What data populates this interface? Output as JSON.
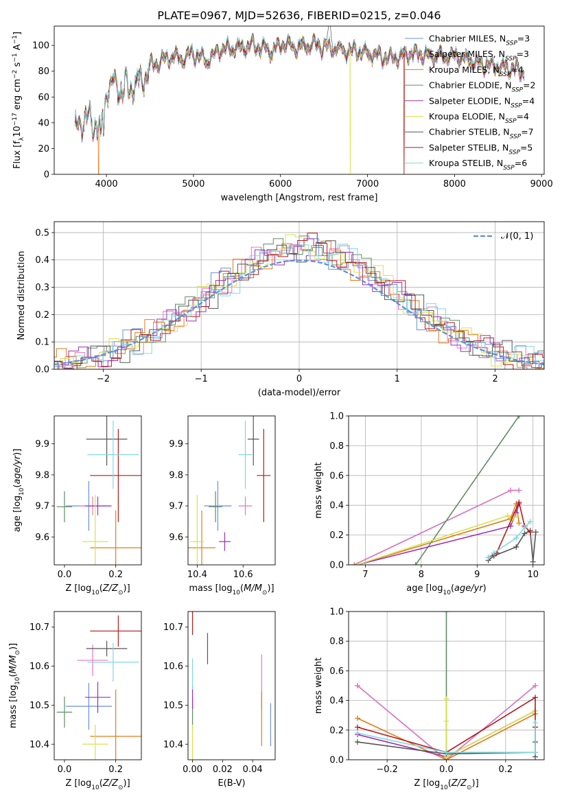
{
  "title": "PLATE=0967, MJD=52636, FIBERID=0215, z=0.046",
  "colors": {
    "Chabrier MILES": "#6a8fdc",
    "Salpeter MILES": "#e377c2",
    "Kroupa MILES": "#e07b18",
    "Chabrier ELODIE": "#5e8c64",
    "Salpeter ELODIE": "#9b2fb5",
    "Kroupa ELODIE": "#d6e34a",
    "Chabrier STELIB": "#555555",
    "Salpeter STELIB": "#b01a1a",
    "Kroupa STELIB": "#7fd7e0",
    "gaussian": "#5b8ee0"
  },
  "legend_main": [
    {
      "base": "Chabrier MILES, N",
      "n": "3"
    },
    {
      "base": "Salpeter MILES, N",
      "n": "3"
    },
    {
      "base": "Kroupa MILES, N",
      "n": "4"
    },
    {
      "base": "Chabrier ELODIE, N",
      "n": "2"
    },
    {
      "base": "Salpeter ELODIE, N",
      "n": "4"
    },
    {
      "base": "Kroupa ELODIE, N",
      "n": "4"
    },
    {
      "base": "Chabrier STELIB, N",
      "n": "7"
    },
    {
      "base": "Salpeter STELIB, N",
      "n": "5"
    },
    {
      "base": "Kroupa STELIB, N",
      "n": "6"
    }
  ],
  "legend_sub": "SSP",
  "legend_gauss": "𝒩(0, 1)",
  "chart_data": [
    {
      "id": "spectrum",
      "type": "line",
      "xlabel": "wavelength [Angstrom, rest frame]",
      "ylabel": "Flux [f",
      "xlim": [
        3400,
        9030
      ],
      "ylim": [
        0,
        115
      ],
      "xticks": [
        "4000",
        "5000",
        "6000",
        "7000",
        "8000",
        "9000"
      ],
      "yticks": [
        "0",
        "20",
        "40",
        "60",
        "80",
        "100"
      ],
      "x": [
        3640,
        3750,
        3900,
        3950,
        4000,
        4100,
        4200,
        4300,
        4400,
        4500,
        4700,
        4800,
        4860,
        4950,
        5100,
        5175,
        5300,
        5500,
        5700,
        5890,
        6000,
        6200,
        6400,
        6563,
        6700,
        6900,
        7100,
        7300,
        7500,
        7700,
        7900,
        8100,
        8300,
        8500,
        8800
      ],
      "y": [
        35,
        43,
        38,
        40,
        66,
        70,
        65,
        69,
        72,
        83,
        90,
        92,
        88,
        94,
        91,
        88,
        96,
        98,
        100,
        95,
        101,
        99,
        100,
        98,
        97,
        95,
        92,
        90,
        94,
        92,
        92,
        90,
        86,
        84,
        80
      ],
      "cutoffs": [
        {
          "series": "Kroupa ELODIE",
          "at": 6800
        },
        {
          "series": "Salpeter STELIB",
          "at": 7420
        },
        {
          "series": "Kroupa MILES",
          "at": 3910
        }
      ]
    },
    {
      "id": "residuals",
      "type": "histogram",
      "xlabel": "(data-model)/error",
      "ylabel": "Normed distribution",
      "xlim": [
        -2.5,
        2.5
      ],
      "ylim": [
        0,
        0.54
      ],
      "xticks": [
        "−2",
        "−1",
        "0",
        "1",
        "2"
      ],
      "yticks": [
        "0.0",
        "0.1",
        "0.2",
        "0.3",
        "0.4",
        "0.5"
      ],
      "bin_width": 0.1,
      "gaussian": {
        "mu": 0,
        "sigma": 1
      }
    },
    {
      "id": "age_vs_Z",
      "type": "scatter",
      "xlabel": "Z [log",
      "ylabel": "age  [log",
      "xlim": [
        -0.04,
        0.3
      ],
      "ylim": [
        9.51,
        9.99
      ],
      "xticks": [
        "0.0",
        "0.2"
      ],
      "yticks": [
        "9.6",
        "9.7",
        "9.8",
        "9.9"
      ],
      "points": [
        {
          "series": "Chabrier MILES",
          "x": 0.095,
          "y": 9.7,
          "xerr": 0.09,
          "yerr": 0.08
        },
        {
          "series": "Salpeter MILES",
          "x": 0.11,
          "y": 9.7,
          "xerr": 0.05,
          "yerr": 0.03
        },
        {
          "series": "Kroupa MILES",
          "x": 0.2,
          "y": 9.565,
          "xerr": 0.1,
          "yerr": 0.12
        },
        {
          "series": "Chabrier ELODIE",
          "x": 0.0,
          "y": 9.697,
          "xerr": 0.03,
          "yerr": 0.05
        },
        {
          "series": "Salpeter ELODIE",
          "x": 0.13,
          "y": 9.7,
          "xerr": 0.05,
          "yerr": 0.03
        },
        {
          "series": "Kroupa ELODIE",
          "x": 0.12,
          "y": 9.585,
          "xerr": 0.05,
          "yerr": 0.15
        },
        {
          "series": "Chabrier STELIB",
          "x": 0.165,
          "y": 9.915,
          "xerr": 0.08,
          "yerr": 0.085
        },
        {
          "series": "Salpeter STELIB",
          "x": 0.21,
          "y": 9.798,
          "xerr": 0.11,
          "yerr": 0.15
        },
        {
          "series": "Kroupa STELIB",
          "x": 0.19,
          "y": 9.865,
          "xerr": 0.1,
          "yerr": 0.11
        }
      ]
    },
    {
      "id": "age_vs_mass",
      "type": "scatter",
      "xlabel": "mass [log",
      "xlim": [
        10.36,
        10.74
      ],
      "ylim": [
        9.51,
        9.99
      ],
      "xticks": [
        "10.4",
        "10.6"
      ],
      "yticks": [
        "9.6",
        "9.7",
        "9.8",
        "9.9"
      ],
      "points": [
        {
          "series": "Chabrier MILES",
          "x": 10.49,
          "y": 9.7,
          "xerr": 0.06,
          "yerr": 0.08
        },
        {
          "series": "Salpeter MILES",
          "x": 10.61,
          "y": 9.7,
          "xerr": 0.03,
          "yerr": 0.03
        },
        {
          "series": "Kroupa MILES",
          "x": 10.42,
          "y": 9.565,
          "xerr": 0.06,
          "yerr": 0.12
        },
        {
          "series": "Chabrier ELODIE",
          "x": 10.48,
          "y": 9.697,
          "xerr": 0.03,
          "yerr": 0.05
        },
        {
          "series": "Salpeter ELODIE",
          "x": 10.52,
          "y": 9.585,
          "xerr": 0.025,
          "yerr": 0.03
        },
        {
          "series": "Kroupa ELODIE",
          "x": 10.4,
          "y": 9.585,
          "xerr": 0.03,
          "yerr": 0.15
        },
        {
          "series": "Chabrier STELIB",
          "x": 10.645,
          "y": 9.915,
          "xerr": 0.025,
          "yerr": 0.085
        },
        {
          "series": "Salpeter STELIB",
          "x": 10.69,
          "y": 9.798,
          "xerr": 0.03,
          "yerr": 0.15
        },
        {
          "series": "Kroupa STELIB",
          "x": 10.61,
          "y": 9.865,
          "xerr": 0.03,
          "yerr": 0.11
        }
      ]
    },
    {
      "id": "weight_vs_age",
      "type": "line",
      "xlabel": "age  [log",
      "ylabel": "mass weight",
      "xlim": [
        6.7,
        10.2
      ],
      "ylim": [
        0,
        1.0
      ],
      "xticks": [
        "7",
        "8",
        "9",
        "10"
      ],
      "yticks": [
        "0.0",
        "0.2",
        "0.4",
        "0.6",
        "0.8",
        "1.0"
      ],
      "series": [
        {
          "name": "Chabrier MILES",
          "x": [
            6.8,
            9.6,
            9.75
          ],
          "y": [
            0.0,
            0.5,
            0.5
          ]
        },
        {
          "name": "Salpeter MILES",
          "x": [
            6.8,
            9.6,
            9.75
          ],
          "y": [
            0.0,
            0.5,
            0.5
          ]
        },
        {
          "name": "Kroupa MILES",
          "x": [
            6.85,
            9.6,
            9.7,
            9.75
          ],
          "y": [
            0.0,
            0.31,
            0.41,
            0.28
          ]
        },
        {
          "name": "Chabrier ELODIE",
          "x": [
            7.9,
            9.75
          ],
          "y": [
            0.0,
            1.0
          ]
        },
        {
          "name": "Salpeter ELODIE",
          "x": [
            6.85,
            9.6,
            9.7,
            9.75
          ],
          "y": [
            0.0,
            0.26,
            0.35,
            0.41
          ]
        },
        {
          "name": "Kroupa ELODIE",
          "x": [
            6.85,
            9.55,
            9.62,
            9.7
          ],
          "y": [
            0.0,
            0.33,
            0.3,
            0.33
          ]
        },
        {
          "name": "Chabrier STELIB",
          "x": [
            9.2,
            9.3,
            9.7,
            9.85,
            9.95,
            10.0,
            10.05
          ],
          "y": [
            0.03,
            0.06,
            0.12,
            0.21,
            0.23,
            0.02,
            0.22
          ]
        },
        {
          "name": "Salpeter STELIB",
          "x": [
            9.2,
            9.35,
            9.75,
            9.85,
            9.95
          ],
          "y": [
            0.05,
            0.08,
            0.42,
            0.26,
            0.22
          ]
        },
        {
          "name": "Kroupa STELIB",
          "x": [
            9.2,
            9.3,
            9.7,
            9.85,
            9.95
          ],
          "y": [
            0.05,
            0.08,
            0.18,
            0.25,
            0.29
          ]
        }
      ]
    },
    {
      "id": "mass_vs_Z",
      "type": "scatter",
      "xlabel": "Z [log",
      "ylabel": "mass [log",
      "xlim": [
        -0.04,
        0.3
      ],
      "ylim": [
        10.36,
        10.74
      ],
      "xticks": [
        "0.0",
        "0.2"
      ],
      "yticks": [
        "10.4",
        "10.5",
        "10.6",
        "10.7"
      ],
      "points": [
        {
          "series": "Chabrier MILES",
          "x": 0.095,
          "y": 10.497,
          "xerr": 0.09,
          "yerr": 0.06
        },
        {
          "series": "Salpeter MILES",
          "x": 0.11,
          "y": 10.615,
          "xerr": 0.06,
          "yerr": 0.04
        },
        {
          "series": "Kroupa MILES",
          "x": 0.2,
          "y": 10.42,
          "xerr": 0.1,
          "yerr": 0.12
        },
        {
          "series": "Chabrier ELODIE",
          "x": 0.0,
          "y": 10.482,
          "xerr": 0.03,
          "yerr": 0.04
        },
        {
          "series": "Salpeter ELODIE",
          "x": 0.13,
          "y": 10.52,
          "xerr": 0.05,
          "yerr": 0.04
        },
        {
          "series": "Kroupa ELODIE",
          "x": 0.12,
          "y": 10.4,
          "xerr": 0.05,
          "yerr": 0.05
        },
        {
          "series": "Chabrier STELIB",
          "x": 0.165,
          "y": 10.645,
          "xerr": 0.08,
          "yerr": 0.02
        },
        {
          "series": "Salpeter STELIB",
          "x": 0.21,
          "y": 10.69,
          "xerr": 0.11,
          "yerr": 0.04
        },
        {
          "series": "Kroupa STELIB",
          "x": 0.19,
          "y": 10.61,
          "xerr": 0.1,
          "yerr": 0.05
        }
      ]
    },
    {
      "id": "mass_vs_ebv",
      "type": "scatter",
      "xlabel": "E(B-V)",
      "xlim": [
        -0.003,
        0.055
      ],
      "ylim": [
        10.36,
        10.74
      ],
      "xticks": [
        "0.00",
        "0.02",
        "0.04"
      ],
      "yticks": [
        "10.4",
        "10.5",
        "10.6",
        "10.7"
      ],
      "points": [
        {
          "series": "Chabrier MILES",
          "x": 0.052,
          "y": 10.45,
          "xerr": 0,
          "yerr": 0.055
        },
        {
          "series": "Salpeter MILES",
          "x": 0.046,
          "y": 10.56,
          "xerr": 0,
          "yerr": 0.07
        },
        {
          "series": "Kroupa MILES",
          "x": 0.046,
          "y": 10.465,
          "xerr": 0,
          "yerr": 0.07
        },
        {
          "series": "Chabrier ELODIE",
          "x": 0.0,
          "y": 10.48,
          "xerr": 0,
          "yerr": 0.04
        },
        {
          "series": "Salpeter ELODIE",
          "x": 0.0,
          "y": 10.52,
          "xerr": 0,
          "yerr": 0.03
        },
        {
          "series": "Kroupa ELODIE",
          "x": 0.0,
          "y": 10.4,
          "xerr": 0,
          "yerr": 0.05
        },
        {
          "series": "Chabrier STELIB",
          "x": 0.01,
          "y": 10.645,
          "xerr": 0,
          "yerr": 0.04
        },
        {
          "series": "Salpeter STELIB",
          "x": 0.0,
          "y": 10.72,
          "xerr": 0,
          "yerr": 0.04
        },
        {
          "series": "Kroupa STELIB",
          "x": 0.0,
          "y": 10.58,
          "xerr": 0,
          "yerr": 0.04
        }
      ]
    },
    {
      "id": "weight_vs_Z",
      "type": "line",
      "xlabel": "Z [log",
      "ylabel": "mass weight",
      "xlim": [
        -0.33,
        0.33
      ],
      "ylim": [
        0,
        1.0
      ],
      "xticks": [
        "−0.2",
        "0.0",
        "0.2"
      ],
      "yticks": [
        "0.0",
        "0.2",
        "0.4",
        "0.6",
        "0.8",
        "1.0"
      ],
      "series": [
        {
          "name": "Chabrier MILES",
          "x": [
            -0.3,
            0.0,
            0.3
          ],
          "y": [
            0.5,
            0.0,
            0.5
          ]
        },
        {
          "name": "Salpeter MILES",
          "x": [
            -0.3,
            0.0,
            0.3
          ],
          "y": [
            0.5,
            0.0,
            0.5
          ]
        },
        {
          "name": "Kroupa MILES",
          "x": [
            -0.3,
            0.0,
            0.3
          ],
          "y": [
            0.28,
            0.0,
            0.31
          ]
        },
        {
          "name": "Chabrier ELODIE",
          "x": [
            0.0,
            0.0
          ],
          "y": [
            0.0,
            1.0
          ]
        },
        {
          "name": "Salpeter ELODIE",
          "x": [
            -0.3,
            0.0,
            0.3
          ],
          "y": [
            0.17,
            0.02,
            0.33
          ]
        },
        {
          "name": "Kroupa ELODIE",
          "x": [
            0.0,
            0.0,
            0.0,
            0.3
          ],
          "y": [
            0.41,
            0.26,
            0.02,
            0.33
          ]
        },
        {
          "name": "Chabrier STELIB",
          "x": [
            -0.3,
            0.0,
            0.3,
            0.3,
            0.3,
            0.3
          ],
          "y": [
            0.12,
            0.04,
            0.05,
            0.22,
            0.12,
            0.02
          ]
        },
        {
          "name": "Salpeter STELIB",
          "x": [
            -0.3,
            0.0,
            0.3,
            0.3
          ],
          "y": [
            0.22,
            0.05,
            0.42,
            0.22
          ]
        },
        {
          "name": "Kroupa STELIB",
          "x": [
            -0.3,
            0.0,
            0.3,
            0.3
          ],
          "y": [
            0.18,
            0.05,
            0.05,
            0.25
          ]
        }
      ]
    }
  ]
}
